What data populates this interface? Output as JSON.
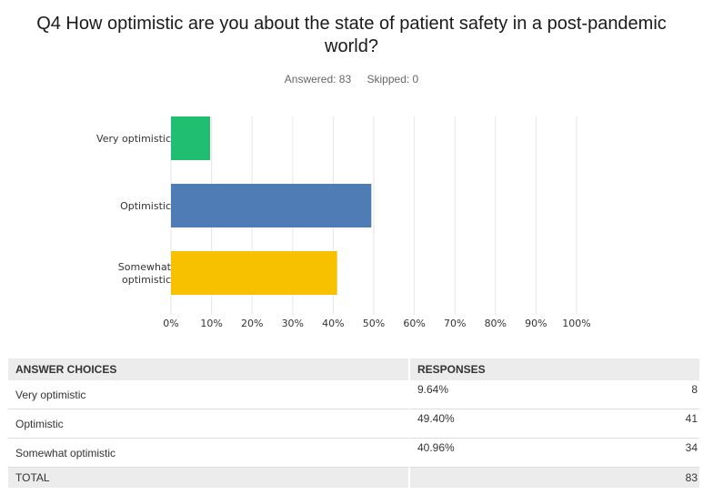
{
  "question": "Q4 How optimistic are you about the state of patient safety in a post-pandemic world?",
  "answered_label": "Answered: 83",
  "skipped_label": "Skipped: 0",
  "chart_data": {
    "type": "bar",
    "orientation": "horizontal",
    "categories": [
      "Very optimistic",
      "Optimistic",
      "Somewhat optimistic"
    ],
    "values": [
      9.64,
      49.4,
      40.96
    ],
    "colors": [
      "#1fbe71",
      "#507cb6",
      "#f7c100"
    ],
    "xlim": [
      0,
      100
    ],
    "x_ticks": [
      "0%",
      "10%",
      "20%",
      "30%",
      "40%",
      "50%",
      "60%",
      "70%",
      "80%",
      "90%",
      "100%"
    ],
    "grid": true
  },
  "table": {
    "headers": {
      "choices": "ANSWER CHOICES",
      "responses": "RESPONSES"
    },
    "rows": [
      {
        "choice": "Very optimistic",
        "percent": "9.64%",
        "count": "8"
      },
      {
        "choice": "Optimistic",
        "percent": "49.40%",
        "count": "41"
      },
      {
        "choice": "Somewhat optimistic",
        "percent": "40.96%",
        "count": "34"
      }
    ],
    "total_label": "TOTAL",
    "total_count": "83"
  }
}
